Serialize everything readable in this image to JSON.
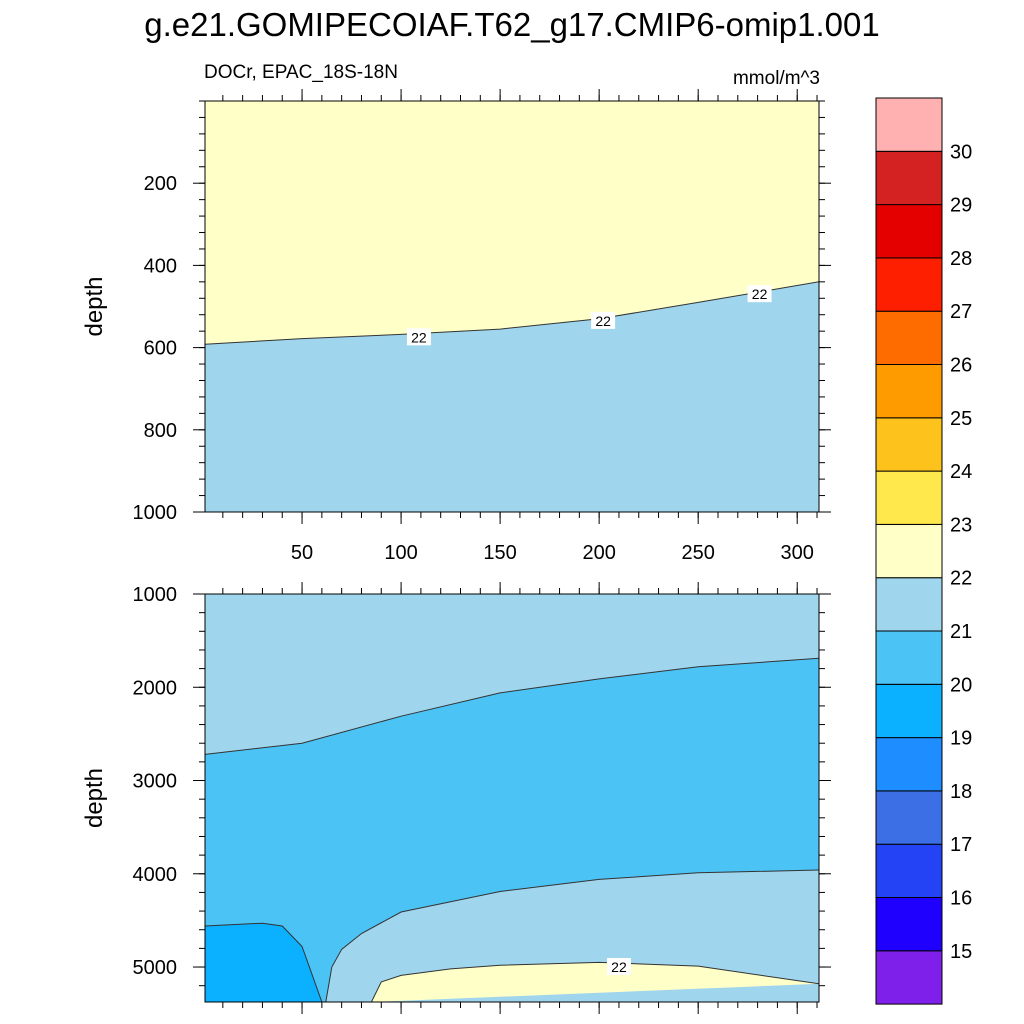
{
  "chart_data": {
    "type": "heatmap",
    "title": "g.e21.GOMIPECOIAF.T62_g17.CMIP6-omip1.001",
    "left_string": "DOCr, EPAC_18S-18N",
    "right_string": "mmol/m^3",
    "xlim": [
      1,
      311
    ],
    "x_ticks": [
      50,
      100,
      150,
      200,
      250,
      300
    ],
    "panels": [
      {
        "name": "upper",
        "ylabel": "depth",
        "ylim": [
          0,
          1000
        ],
        "y_ticks": [
          200,
          400,
          600,
          800,
          1000
        ],
        "show_x_tick_labels": true,
        "contour_22_depth": {
          "x": [
            1,
            50,
            100,
            150,
            200,
            250,
            311
          ],
          "y": [
            592,
            578,
            568,
            555,
            530,
            490,
            440
          ]
        },
        "contour_labels": [
          {
            "text": "22",
            "x": 109,
            "y": 575
          },
          {
            "text": "22",
            "x": 202,
            "y": 535
          },
          {
            "text": "22",
            "x": 281,
            "y": 470
          }
        ]
      },
      {
        "name": "lower",
        "ylabel": "depth",
        "ylim": [
          1000,
          5375
        ],
        "y_ticks": [
          1000,
          2000,
          3000,
          4000,
          5000
        ],
        "show_x_tick_labels": false,
        "contour_21_depth": {
          "x": [
            1,
            50,
            100,
            150,
            200,
            250,
            311
          ],
          "y": [
            2720,
            2600,
            2310,
            2060,
            1910,
            1780,
            1690
          ]
        },
        "contour_20_depth": {
          "x": [
            1,
            30,
            40,
            50,
            60,
            80,
            100,
            150,
            200,
            250,
            311
          ],
          "y": [
            4560,
            4530,
            4560,
            4780,
            5375,
            5375,
            5375,
            5375,
            5375,
            5375,
            5375
          ]
        },
        "contour_21_deep_depth": {
          "x": [
            62,
            65,
            70,
            80,
            100,
            125,
            150,
            200,
            250,
            311
          ],
          "y": [
            5375,
            5000,
            4810,
            4640,
            4410,
            4300,
            4190,
            4060,
            3990,
            3960
          ]
        },
        "contour_22_deep_depth": {
          "x": [
            85,
            90,
            100,
            125,
            150,
            200,
            250,
            311
          ],
          "y": [
            5375,
            5160,
            5090,
            5020,
            4980,
            4950,
            4990,
            5180
          ]
        },
        "contour_labels": [
          {
            "text": "22",
            "x": 210,
            "y": 5000
          }
        ]
      }
    ],
    "colorbar": {
      "levels": [
        15,
        16,
        17,
        18,
        19,
        20,
        21,
        22,
        23,
        24,
        25,
        26,
        27,
        28,
        29,
        30
      ],
      "colors": [
        "#7f1fea",
        "#1f00ff",
        "#2343f5",
        "#3c6fe6",
        "#1e8dff",
        "#0bb0ff",
        "#4cc3f5",
        "#a0d5ee",
        "#ffffc8",
        "#ffe84c",
        "#fdc21c",
        "#fd9b00",
        "#fe6c00",
        "#fe1e00",
        "#e50000",
        "#d42222",
        "#ffb0b0"
      ]
    }
  }
}
